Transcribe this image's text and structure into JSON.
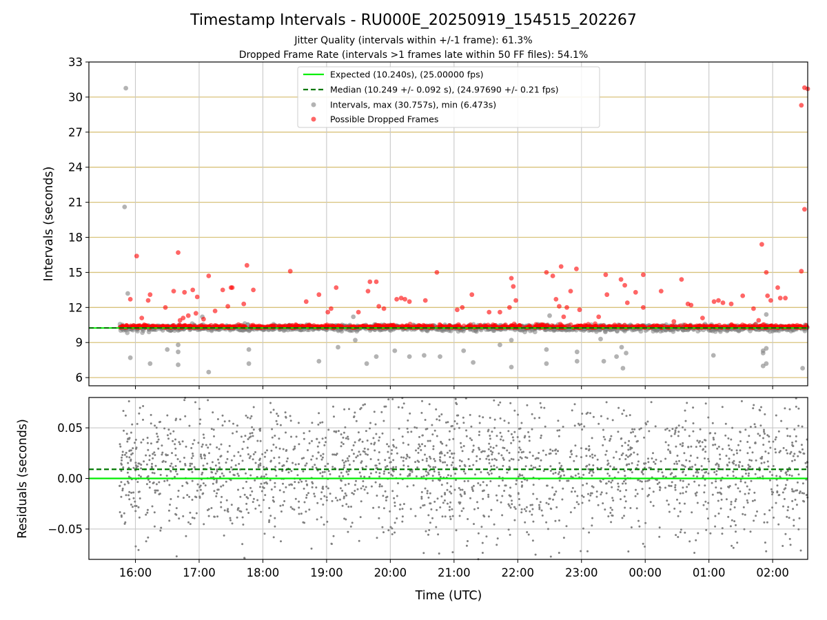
{
  "chart_data": [
    {
      "type": "scatter",
      "title": "Timestamp Intervals - RU000E_20250919_154515_202267",
      "subtitle_1": "Jitter Quality (intervals within +/-1 frame): 61.3%",
      "subtitle_2": "Dropped Frame Rate (intervals >1 frames late within 50 FF files): 54.1%",
      "ylabel": "Intervals (seconds)",
      "ylim": [
        5.3,
        33
      ],
      "yticks": [
        "6",
        "9",
        "12",
        "15",
        "18",
        "21",
        "24",
        "27",
        "30",
        "33"
      ],
      "xlim_hours": [
        15.27,
        26.55
      ],
      "grid": true,
      "legend_position": "upper-center",
      "legend": [
        "Expected (10.240s), (25.00000 fps)",
        "Median (10.249 +/- 0.092 s), (24.97690 +/- 0.21 fps)",
        "Intervals, max (30.757s), min (6.473s)",
        "Possible Dropped Frames"
      ],
      "expected_interval": 10.24,
      "median_interval": 10.249,
      "time_range_hours": [
        15.75,
        26.55
      ],
      "series": [
        {
          "name": "Intervals, max (30.757s), min (6.473s)",
          "color": "#808080",
          "outliers": [
            {
              "x": 15.85,
              "y": 30.76
            },
            {
              "x": 15.83,
              "y": 20.6
            },
            {
              "x": 15.88,
              "y": 13.2
            },
            {
              "x": 15.92,
              "y": 7.7
            },
            {
              "x": 16.23,
              "y": 7.2
            },
            {
              "x": 16.5,
              "y": 8.4
            },
            {
              "x": 16.67,
              "y": 8.8
            },
            {
              "x": 16.67,
              "y": 8.2
            },
            {
              "x": 16.67,
              "y": 7.1
            },
            {
              "x": 17.15,
              "y": 6.47
            },
            {
              "x": 17.78,
              "y": 8.4
            },
            {
              "x": 17.78,
              "y": 7.2
            },
            {
              "x": 18.88,
              "y": 7.4
            },
            {
              "x": 19.18,
              "y": 8.6
            },
            {
              "x": 19.45,
              "y": 9.2
            },
            {
              "x": 19.63,
              "y": 7.2
            },
            {
              "x": 19.78,
              "y": 7.8
            },
            {
              "x": 20.07,
              "y": 8.3
            },
            {
              "x": 20.3,
              "y": 7.8
            },
            {
              "x": 20.53,
              "y": 7.9
            },
            {
              "x": 20.78,
              "y": 7.8
            },
            {
              "x": 21.15,
              "y": 8.3
            },
            {
              "x": 21.3,
              "y": 7.3
            },
            {
              "x": 21.72,
              "y": 8.8
            },
            {
              "x": 21.9,
              "y": 6.9
            },
            {
              "x": 21.9,
              "y": 9.2
            },
            {
              "x": 22.45,
              "y": 8.4
            },
            {
              "x": 22.45,
              "y": 7.2
            },
            {
              "x": 22.93,
              "y": 8.2
            },
            {
              "x": 22.93,
              "y": 7.4
            },
            {
              "x": 23.3,
              "y": 9.3
            },
            {
              "x": 23.35,
              "y": 7.4
            },
            {
              "x": 23.55,
              "y": 7.8
            },
            {
              "x": 23.63,
              "y": 8.6
            },
            {
              "x": 23.7,
              "y": 8.1
            },
            {
              "x": 23.65,
              "y": 6.8
            },
            {
              "x": 25.07,
              "y": 7.9
            },
            {
              "x": 25.85,
              "y": 8.3
            },
            {
              "x": 25.85,
              "y": 8.1
            },
            {
              "x": 25.85,
              "y": 7.0
            },
            {
              "x": 25.9,
              "y": 8.5
            },
            {
              "x": 25.9,
              "y": 7.2
            },
            {
              "x": 25.9,
              "y": 11.4
            },
            {
              "x": 26.47,
              "y": 6.8
            },
            {
              "x": 22.5,
              "y": 11.3
            },
            {
              "x": 19.42,
              "y": 11.2
            },
            {
              "x": 17.05,
              "y": 11.2
            }
          ]
        },
        {
          "name": "Possible Dropped Frames",
          "color": "#ff0000",
          "outliers": [
            {
              "x": 26.5,
              "y": 30.8
            },
            {
              "x": 26.55,
              "y": 30.7
            },
            {
              "x": 26.45,
              "y": 29.3
            },
            {
              "x": 26.5,
              "y": 20.4
            },
            {
              "x": 26.45,
              "y": 15.1
            },
            {
              "x": 25.83,
              "y": 17.4
            },
            {
              "x": 25.9,
              "y": 15.0
            },
            {
              "x": 25.97,
              "y": 12.6
            },
            {
              "x": 26.08,
              "y": 13.7
            },
            {
              "x": 26.12,
              "y": 12.8
            },
            {
              "x": 26.2,
              "y": 12.8
            },
            {
              "x": 25.92,
              "y": 13.0
            },
            {
              "x": 25.7,
              "y": 11.9
            },
            {
              "x": 25.78,
              "y": 10.9
            },
            {
              "x": 25.53,
              "y": 13.0
            },
            {
              "x": 25.35,
              "y": 12.3
            },
            {
              "x": 25.22,
              "y": 12.4
            },
            {
              "x": 25.15,
              "y": 12.6
            },
            {
              "x": 25.08,
              "y": 12.5
            },
            {
              "x": 24.9,
              "y": 11.1
            },
            {
              "x": 24.72,
              "y": 12.2
            },
            {
              "x": 24.67,
              "y": 12.3
            },
            {
              "x": 24.57,
              "y": 14.4
            },
            {
              "x": 24.45,
              "y": 10.8
            },
            {
              "x": 24.25,
              "y": 13.4
            },
            {
              "x": 23.97,
              "y": 14.8
            },
            {
              "x": 23.97,
              "y": 12.0
            },
            {
              "x": 23.85,
              "y": 13.3
            },
            {
              "x": 23.72,
              "y": 12.4
            },
            {
              "x": 23.68,
              "y": 13.9
            },
            {
              "x": 23.62,
              "y": 14.4
            },
            {
              "x": 23.38,
              "y": 14.8
            },
            {
              "x": 23.4,
              "y": 13.1
            },
            {
              "x": 23.27,
              "y": 11.2
            },
            {
              "x": 22.97,
              "y": 11.8
            },
            {
              "x": 22.92,
              "y": 15.3
            },
            {
              "x": 22.83,
              "y": 13.4
            },
            {
              "x": 22.72,
              "y": 11.2
            },
            {
              "x": 22.65,
              "y": 12.1
            },
            {
              "x": 22.6,
              "y": 12.7
            },
            {
              "x": 22.55,
              "y": 14.7
            },
            {
              "x": 22.68,
              "y": 15.5
            },
            {
              "x": 22.45,
              "y": 15.0
            },
            {
              "x": 22.77,
              "y": 12.0
            },
            {
              "x": 21.97,
              "y": 12.6
            },
            {
              "x": 21.93,
              "y": 13.8
            },
            {
              "x": 21.9,
              "y": 14.5
            },
            {
              "x": 21.87,
              "y": 12.0
            },
            {
              "x": 21.72,
              "y": 11.6
            },
            {
              "x": 21.55,
              "y": 11.6
            },
            {
              "x": 21.28,
              "y": 13.1
            },
            {
              "x": 21.13,
              "y": 12.0
            },
            {
              "x": 21.05,
              "y": 11.8
            },
            {
              "x": 20.73,
              "y": 15.0
            },
            {
              "x": 20.55,
              "y": 12.6
            },
            {
              "x": 20.3,
              "y": 12.5
            },
            {
              "x": 20.23,
              "y": 12.7
            },
            {
              "x": 20.17,
              "y": 12.8
            },
            {
              "x": 20.1,
              "y": 12.7
            },
            {
              "x": 19.9,
              "y": 11.9
            },
            {
              "x": 19.82,
              "y": 12.1
            },
            {
              "x": 19.78,
              "y": 14.2
            },
            {
              "x": 19.68,
              "y": 14.2
            },
            {
              "x": 19.65,
              "y": 13.4
            },
            {
              "x": 19.5,
              "y": 11.6
            },
            {
              "x": 19.15,
              "y": 13.7
            },
            {
              "x": 19.07,
              "y": 11.9
            },
            {
              "x": 19.02,
              "y": 11.6
            },
            {
              "x": 18.88,
              "y": 13.1
            },
            {
              "x": 18.68,
              "y": 12.5
            },
            {
              "x": 18.43,
              "y": 15.1
            },
            {
              "x": 17.85,
              "y": 13.5
            },
            {
              "x": 17.75,
              "y": 15.6
            },
            {
              "x": 17.7,
              "y": 12.3
            },
            {
              "x": 17.52,
              "y": 13.7
            },
            {
              "x": 17.5,
              "y": 13.7
            },
            {
              "x": 17.45,
              "y": 12.1
            },
            {
              "x": 17.37,
              "y": 13.5
            },
            {
              "x": 17.25,
              "y": 11.7
            },
            {
              "x": 17.15,
              "y": 14.7
            },
            {
              "x": 17.07,
              "y": 11.0
            },
            {
              "x": 16.97,
              "y": 12.9
            },
            {
              "x": 16.95,
              "y": 11.5
            },
            {
              "x": 16.9,
              "y": 13.5
            },
            {
              "x": 16.83,
              "y": 11.3
            },
            {
              "x": 16.77,
              "y": 13.3
            },
            {
              "x": 16.75,
              "y": 11.1
            },
            {
              "x": 16.7,
              "y": 10.9
            },
            {
              "x": 16.67,
              "y": 16.7
            },
            {
              "x": 16.6,
              "y": 13.4
            },
            {
              "x": 16.47,
              "y": 12.0
            },
            {
              "x": 16.23,
              "y": 13.1
            },
            {
              "x": 16.2,
              "y": 12.6
            },
            {
              "x": 16.1,
              "y": 11.1
            },
            {
              "x": 16.02,
              "y": 16.4
            },
            {
              "x": 15.92,
              "y": 12.7
            }
          ]
        }
      ]
    },
    {
      "type": "scatter",
      "ylabel": "Residuals (seconds)",
      "xlabel": "Time (UTC)",
      "ylim": [
        -0.08,
        0.08
      ],
      "yticks": [
        "0.05",
        "0.00",
        "−0.05"
      ],
      "xticks": [
        "16:00",
        "17:00",
        "18:00",
        "19:00",
        "20:00",
        "21:00",
        "22:00",
        "23:00",
        "00:00",
        "01:00",
        "02:00"
      ],
      "grid": true,
      "expected_residual": 0.0,
      "median_residual": 0.009,
      "residual_spread_seconds": 0.092,
      "point_color": "#808080",
      "expected_line_color": "#00ee00",
      "median_line_color": "#007700"
    }
  ]
}
